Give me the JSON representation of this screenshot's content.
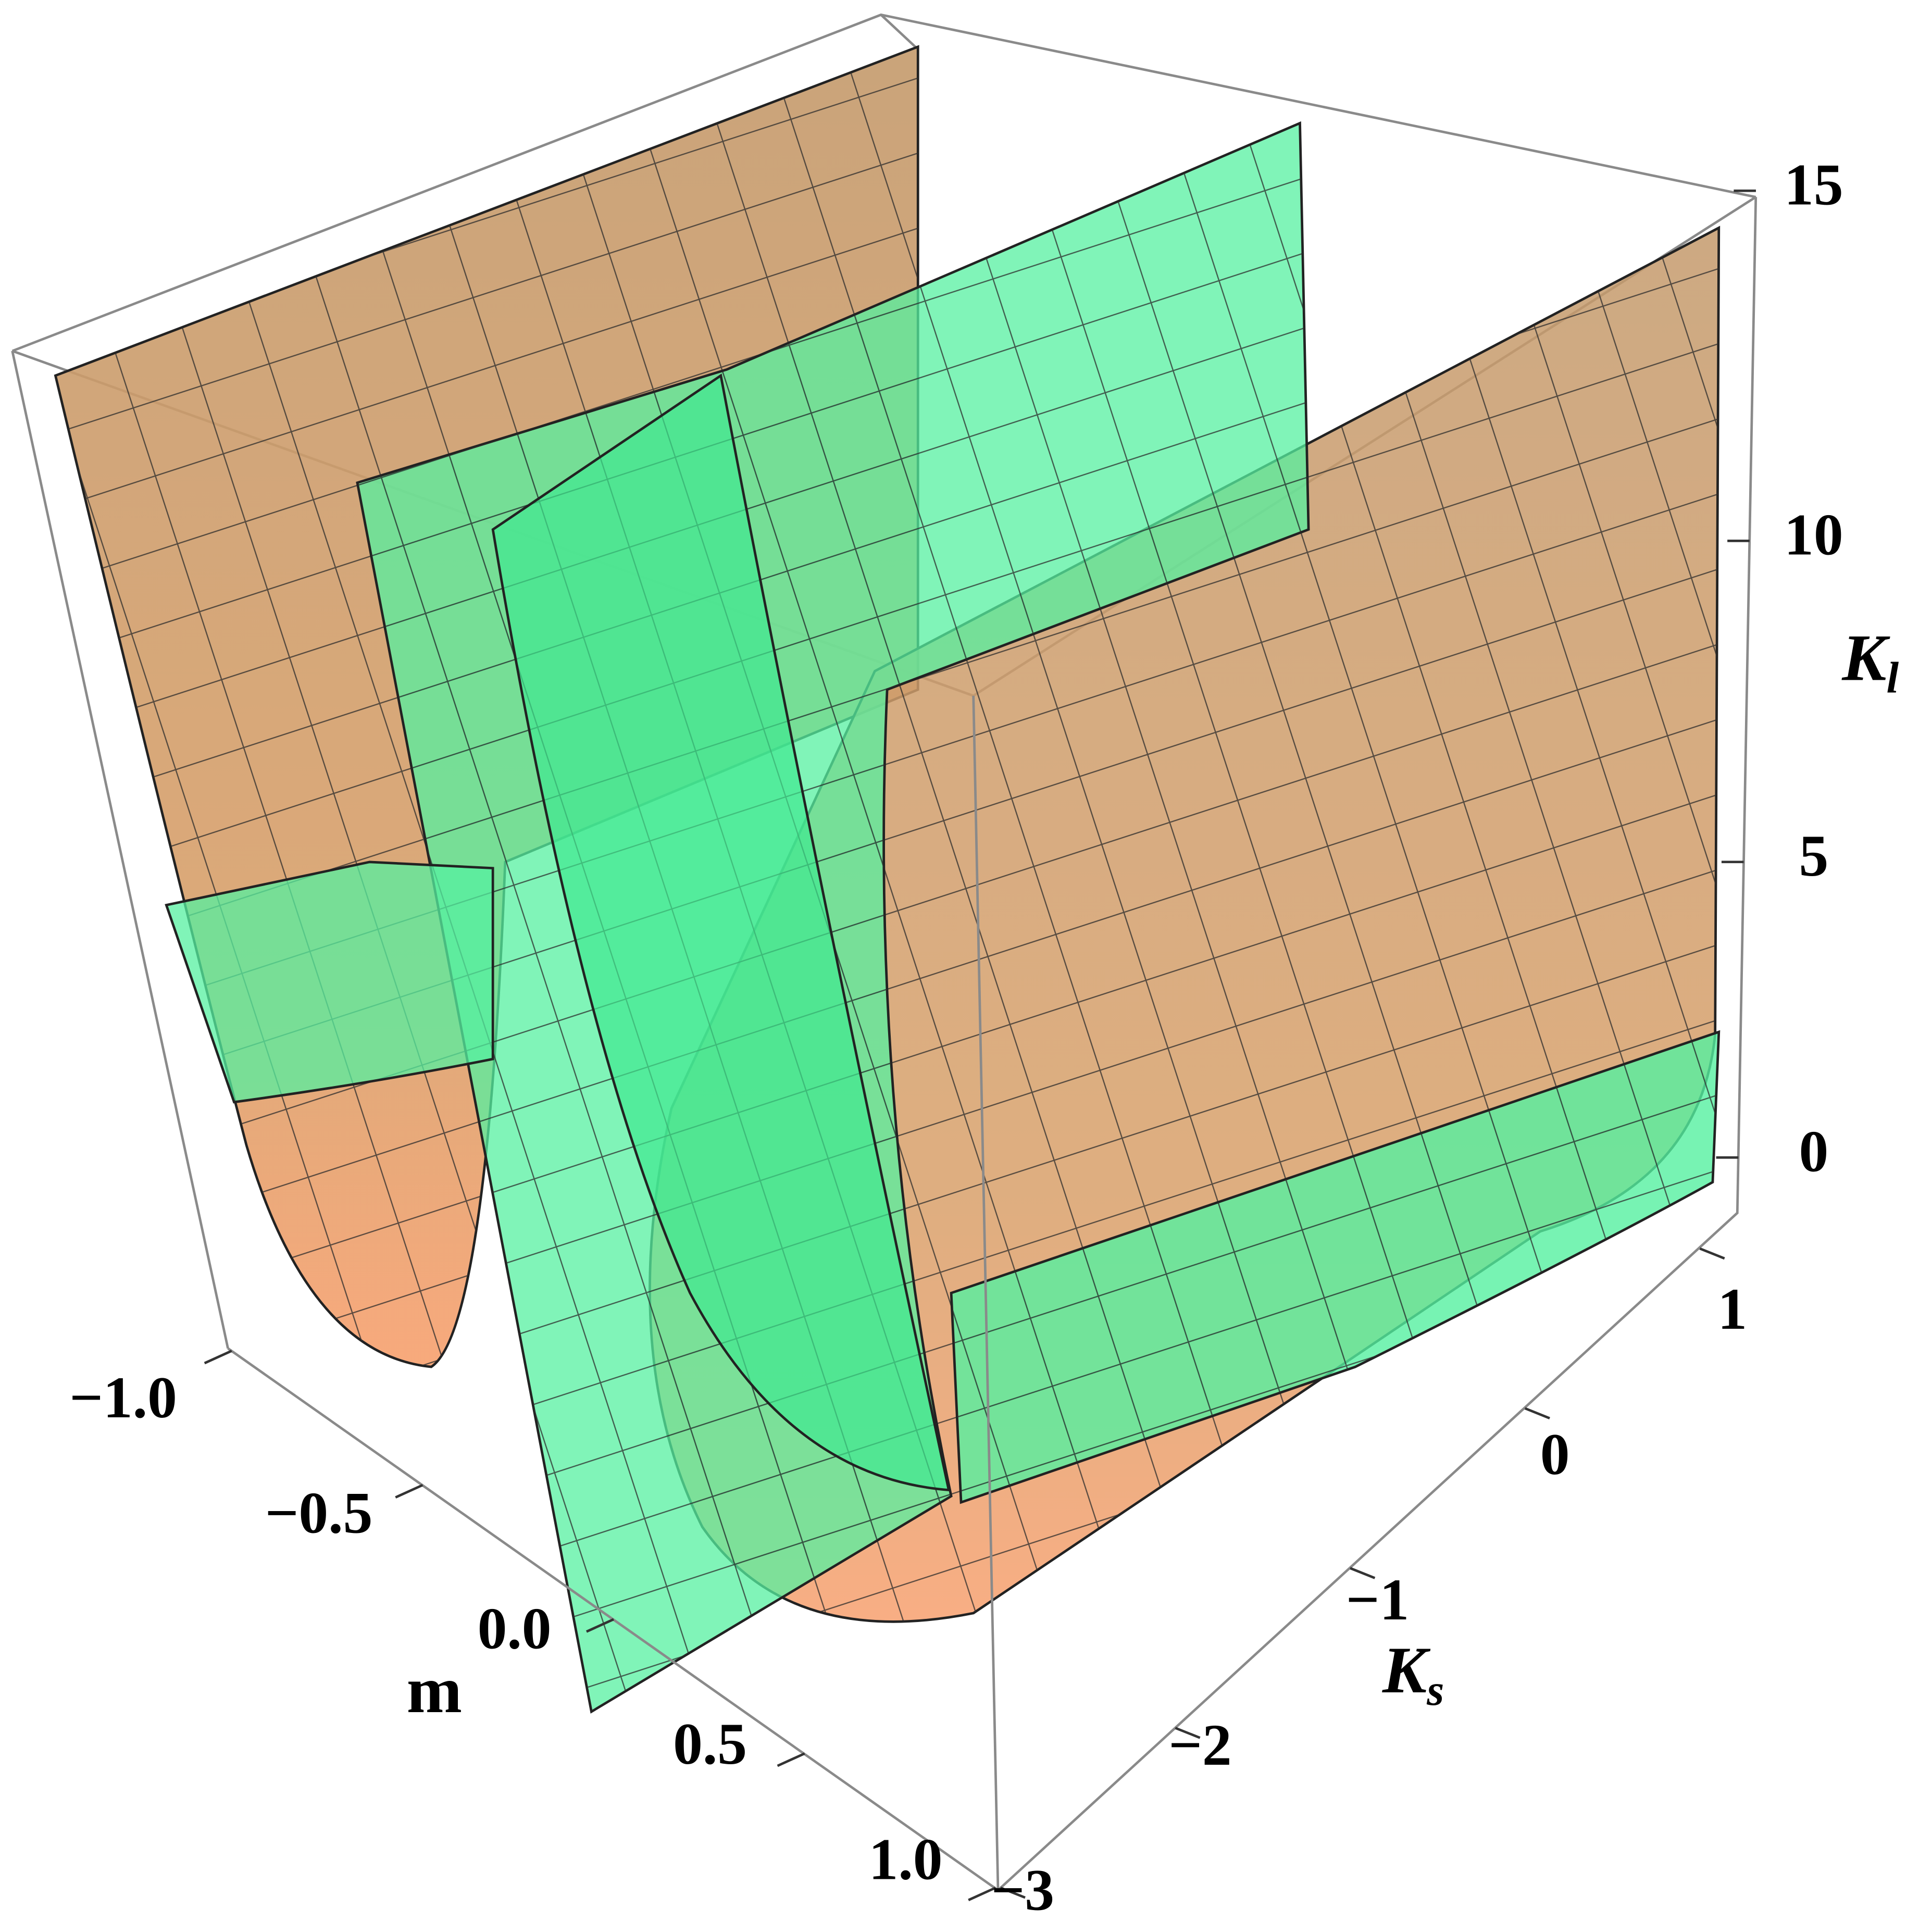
{
  "chart_data": {
    "type": "surface3d",
    "xlabel": "m",
    "ylabel": {
      "text": "K",
      "sub": "s"
    },
    "zlabel": {
      "text": "K",
      "sub": "l"
    },
    "xlim": [
      -1,
      1
    ],
    "xticks": [
      {
        "value": -1,
        "label": "−1.0"
      },
      {
        "value": -0.5,
        "label": "−0.5"
      },
      {
        "value": 0,
        "label": "0.0"
      },
      0.5,
      {
        "value": 1,
        "label": "1.0"
      }
    ],
    "ylim": [
      -3,
      1.2
    ],
    "yticks": [
      {
        "value": -3,
        "label": "−3"
      },
      {
        "value": -2,
        "label": "−2"
      },
      {
        "value": -1,
        "label": "−1"
      },
      0,
      1
    ],
    "zlim": [
      -1,
      15
    ],
    "zticks": [
      0,
      5,
      10,
      15
    ]
  }
}
